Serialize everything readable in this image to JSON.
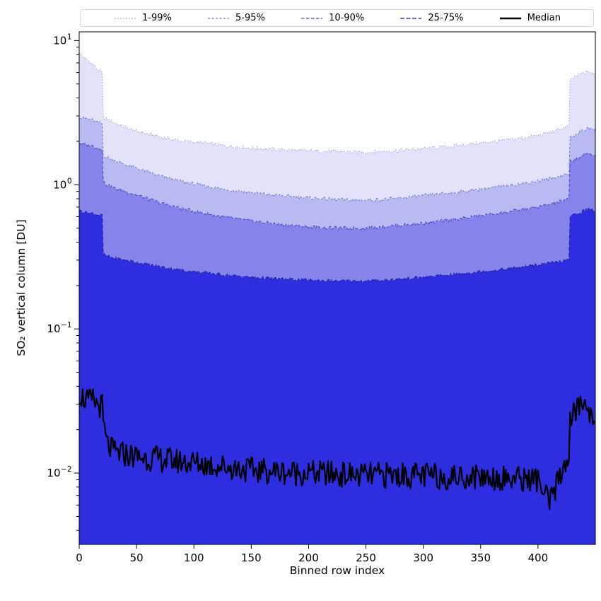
{
  "figure": {
    "background": "#ffffff"
  },
  "chart_data": {
    "type": "area",
    "title": "",
    "xlabel": "Binned row index",
    "ylabel": "SO₂ vertical column [DU]",
    "grid": false,
    "legend_position": "top horizontal above axes",
    "x_axis": {
      "lim": [
        0,
        450
      ],
      "ticks": [
        0,
        50,
        100,
        150,
        200,
        250,
        300,
        350,
        400
      ]
    },
    "y_axis": {
      "scale": "log",
      "lim": [
        0.0032,
        11.5
      ],
      "tick_exponents": [
        -2,
        -1,
        0,
        1
      ]
    },
    "key_x": [
      0,
      4,
      8,
      12,
      16,
      20,
      21,
      24,
      30,
      40,
      50,
      70,
      90,
      110,
      130,
      150,
      175,
      200,
      225,
      250,
      275,
      300,
      325,
      350,
      375,
      400,
      410,
      418,
      424,
      427,
      428,
      432,
      438,
      444,
      449
    ],
    "series": [
      {
        "name": "1-99%",
        "percentile_band": [
          1,
          99
        ],
        "line_color": "#9a9aec",
        "fill_color": "#e2e2f9",
        "dash": [
          1.5,
          2.5
        ],
        "line_width": 1,
        "noise_log10": 0.013,
        "key_y": [
          8.2,
          7.6,
          7.2,
          6.8,
          6.3,
          5.9,
          2.95,
          2.85,
          2.7,
          2.5,
          2.35,
          2.15,
          2.0,
          1.95,
          1.85,
          1.8,
          1.75,
          1.72,
          1.7,
          1.68,
          1.72,
          1.78,
          1.85,
          1.95,
          2.05,
          2.2,
          2.3,
          2.4,
          2.5,
          2.55,
          5.2,
          5.6,
          5.9,
          6.1,
          5.8
        ]
      },
      {
        "name": "5-95%",
        "percentile_band": [
          5,
          95
        ],
        "line_color": "#7070e0",
        "fill_color": "#babaf2",
        "dash": [
          3,
          2.5
        ],
        "line_width": 1,
        "noise_log10": 0.012,
        "key_y": [
          2.95,
          2.9,
          2.85,
          2.8,
          2.7,
          2.65,
          1.6,
          1.55,
          1.48,
          1.38,
          1.3,
          1.15,
          1.05,
          0.98,
          0.92,
          0.88,
          0.84,
          0.81,
          0.79,
          0.78,
          0.8,
          0.84,
          0.88,
          0.93,
          0.99,
          1.06,
          1.1,
          1.14,
          1.18,
          1.2,
          2.1,
          2.2,
          2.35,
          2.45,
          2.4
        ]
      },
      {
        "name": "10-90%",
        "percentile_band": [
          10,
          90
        ],
        "line_color": "#4444cc",
        "fill_color": "#8484ea",
        "dash": [
          4.5,
          2.5
        ],
        "line_width": 1,
        "noise_log10": 0.012,
        "key_y": [
          1.95,
          1.9,
          1.88,
          1.85,
          1.8,
          1.78,
          1.05,
          1.0,
          0.95,
          0.9,
          0.85,
          0.75,
          0.68,
          0.63,
          0.59,
          0.56,
          0.53,
          0.51,
          0.5,
          0.5,
          0.52,
          0.54,
          0.57,
          0.61,
          0.65,
          0.7,
          0.73,
          0.76,
          0.78,
          0.8,
          1.45,
          1.5,
          1.58,
          1.65,
          1.6
        ]
      },
      {
        "name": "25-75%",
        "percentile_band": [
          25,
          75
        ],
        "line_color": "#1e1e9e",
        "fill_color": "#2e2ee0",
        "dash": [
          6,
          2.5
        ],
        "line_width": 1,
        "noise_log10": 0.011,
        "key_y": [
          0.66,
          0.65,
          0.64,
          0.63,
          0.62,
          0.61,
          0.33,
          0.32,
          0.31,
          0.3,
          0.29,
          0.27,
          0.255,
          0.245,
          0.235,
          0.228,
          0.222,
          0.218,
          0.215,
          0.215,
          0.22,
          0.228,
          0.238,
          0.25,
          0.262,
          0.278,
          0.285,
          0.292,
          0.298,
          0.3,
          0.6,
          0.62,
          0.65,
          0.68,
          0.66
        ]
      },
      {
        "name": "Median",
        "percentile_band": [
          50,
          50
        ],
        "line_color": "#000000",
        "fill_color": null,
        "dash": null,
        "line_width": 2.2,
        "noise_log10": 0.09,
        "key_y": [
          0.036,
          0.033,
          0.031,
          0.032,
          0.03,
          0.029,
          0.022,
          0.016,
          0.014,
          0.0135,
          0.013,
          0.0125,
          0.012,
          0.0115,
          0.011,
          0.0105,
          0.0102,
          0.01,
          0.0098,
          0.0096,
          0.0097,
          0.0096,
          0.0094,
          0.0095,
          0.0092,
          0.009,
          0.006,
          0.009,
          0.012,
          0.013,
          0.022,
          0.027,
          0.03,
          0.028,
          0.024
        ]
      }
    ]
  }
}
